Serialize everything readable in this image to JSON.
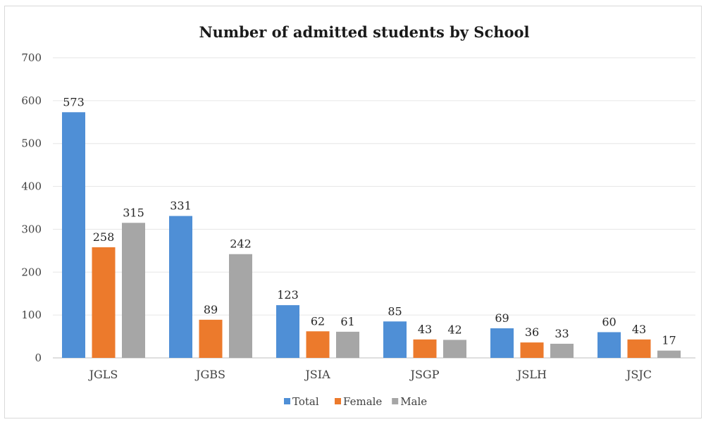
{
  "chart_data": {
    "type": "bar",
    "title": "Number of admitted students by School",
    "categories": [
      "JGLS",
      "JGBS",
      "JSIA",
      "JSGP",
      "JSLH",
      "JSJC"
    ],
    "series": [
      {
        "name": "Total",
        "color": "#4f8fd6",
        "values": [
          573,
          331,
          123,
          85,
          69,
          60
        ]
      },
      {
        "name": "Female",
        "color": "#ec7a2c",
        "values": [
          258,
          89,
          62,
          43,
          36,
          43
        ]
      },
      {
        "name": "Male",
        "color": "#a6a6a6",
        "values": [
          315,
          242,
          61,
          42,
          33,
          17
        ]
      }
    ],
    "ylim": [
      0,
      700
    ],
    "yticks": [
      0,
      100,
      200,
      300,
      400,
      500,
      600,
      700
    ],
    "grid": true,
    "legend": "bottom",
    "data_labels": true
  }
}
